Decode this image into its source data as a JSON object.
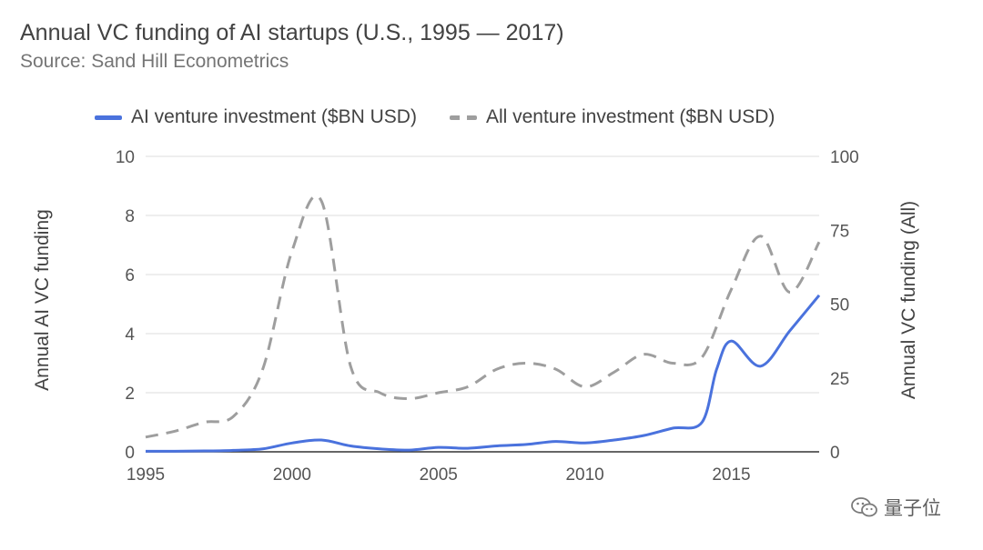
{
  "chart_data": {
    "type": "line",
    "title": "Annual VC funding of AI startups (U.S., 1995 — 2017)",
    "subtitle": "Source: Sand Hill Econometrics",
    "ylabel_left": "Annual AI VC funding",
    "ylabel_right": "Annual VC funding (All)",
    "xlabel": "",
    "x_ticks": [
      "1995",
      "2000",
      "2005",
      "2010",
      "2015"
    ],
    "y_left_ticks": [
      "0",
      "2",
      "4",
      "6",
      "8",
      "10"
    ],
    "y_right_ticks": [
      "0",
      "25",
      "50",
      "75",
      "100"
    ],
    "xlim": [
      1995,
      2018
    ],
    "ylim_left": [
      0,
      10
    ],
    "ylim_right": [
      0,
      100
    ],
    "grid": true,
    "legend_position": "top",
    "series": [
      {
        "name": "AI venture investment ($BN USD)",
        "axis": "left",
        "style": "solid",
        "color": "#4a72dd",
        "x": [
          1995,
          1996,
          1997,
          1998,
          1999,
          2000,
          2001,
          2002,
          2003,
          2004,
          2005,
          2006,
          2007,
          2008,
          2009,
          2010,
          2011,
          2012,
          2013,
          2014,
          2014.5,
          2015,
          2016,
          2017,
          2018
        ],
        "values": [
          0.02,
          0.02,
          0.03,
          0.05,
          0.1,
          0.3,
          0.4,
          0.2,
          0.1,
          0.06,
          0.15,
          0.12,
          0.2,
          0.25,
          0.35,
          0.3,
          0.4,
          0.55,
          0.8,
          1.0,
          2.8,
          3.75,
          2.9,
          4.1,
          5.3
        ]
      },
      {
        "name": "All venture investment ($BN USD)",
        "axis": "right",
        "style": "dashed",
        "color": "#9e9e9e",
        "x": [
          1995,
          1996,
          1997,
          1998,
          1999,
          2000,
          2001,
          2002,
          2003,
          2004,
          2005,
          2006,
          2007,
          2008,
          2009,
          2010,
          2011,
          2012,
          2013,
          2014,
          2015,
          2016,
          2017,
          2018
        ],
        "values": [
          5,
          7,
          10,
          12,
          28,
          68,
          85,
          29,
          20,
          18,
          20,
          22,
          28,
          30,
          28,
          22,
          27,
          33,
          30,
          32,
          55,
          73,
          54,
          71
        ]
      }
    ]
  },
  "watermark": {
    "text": "量子位",
    "icon": "wechat-icon"
  }
}
